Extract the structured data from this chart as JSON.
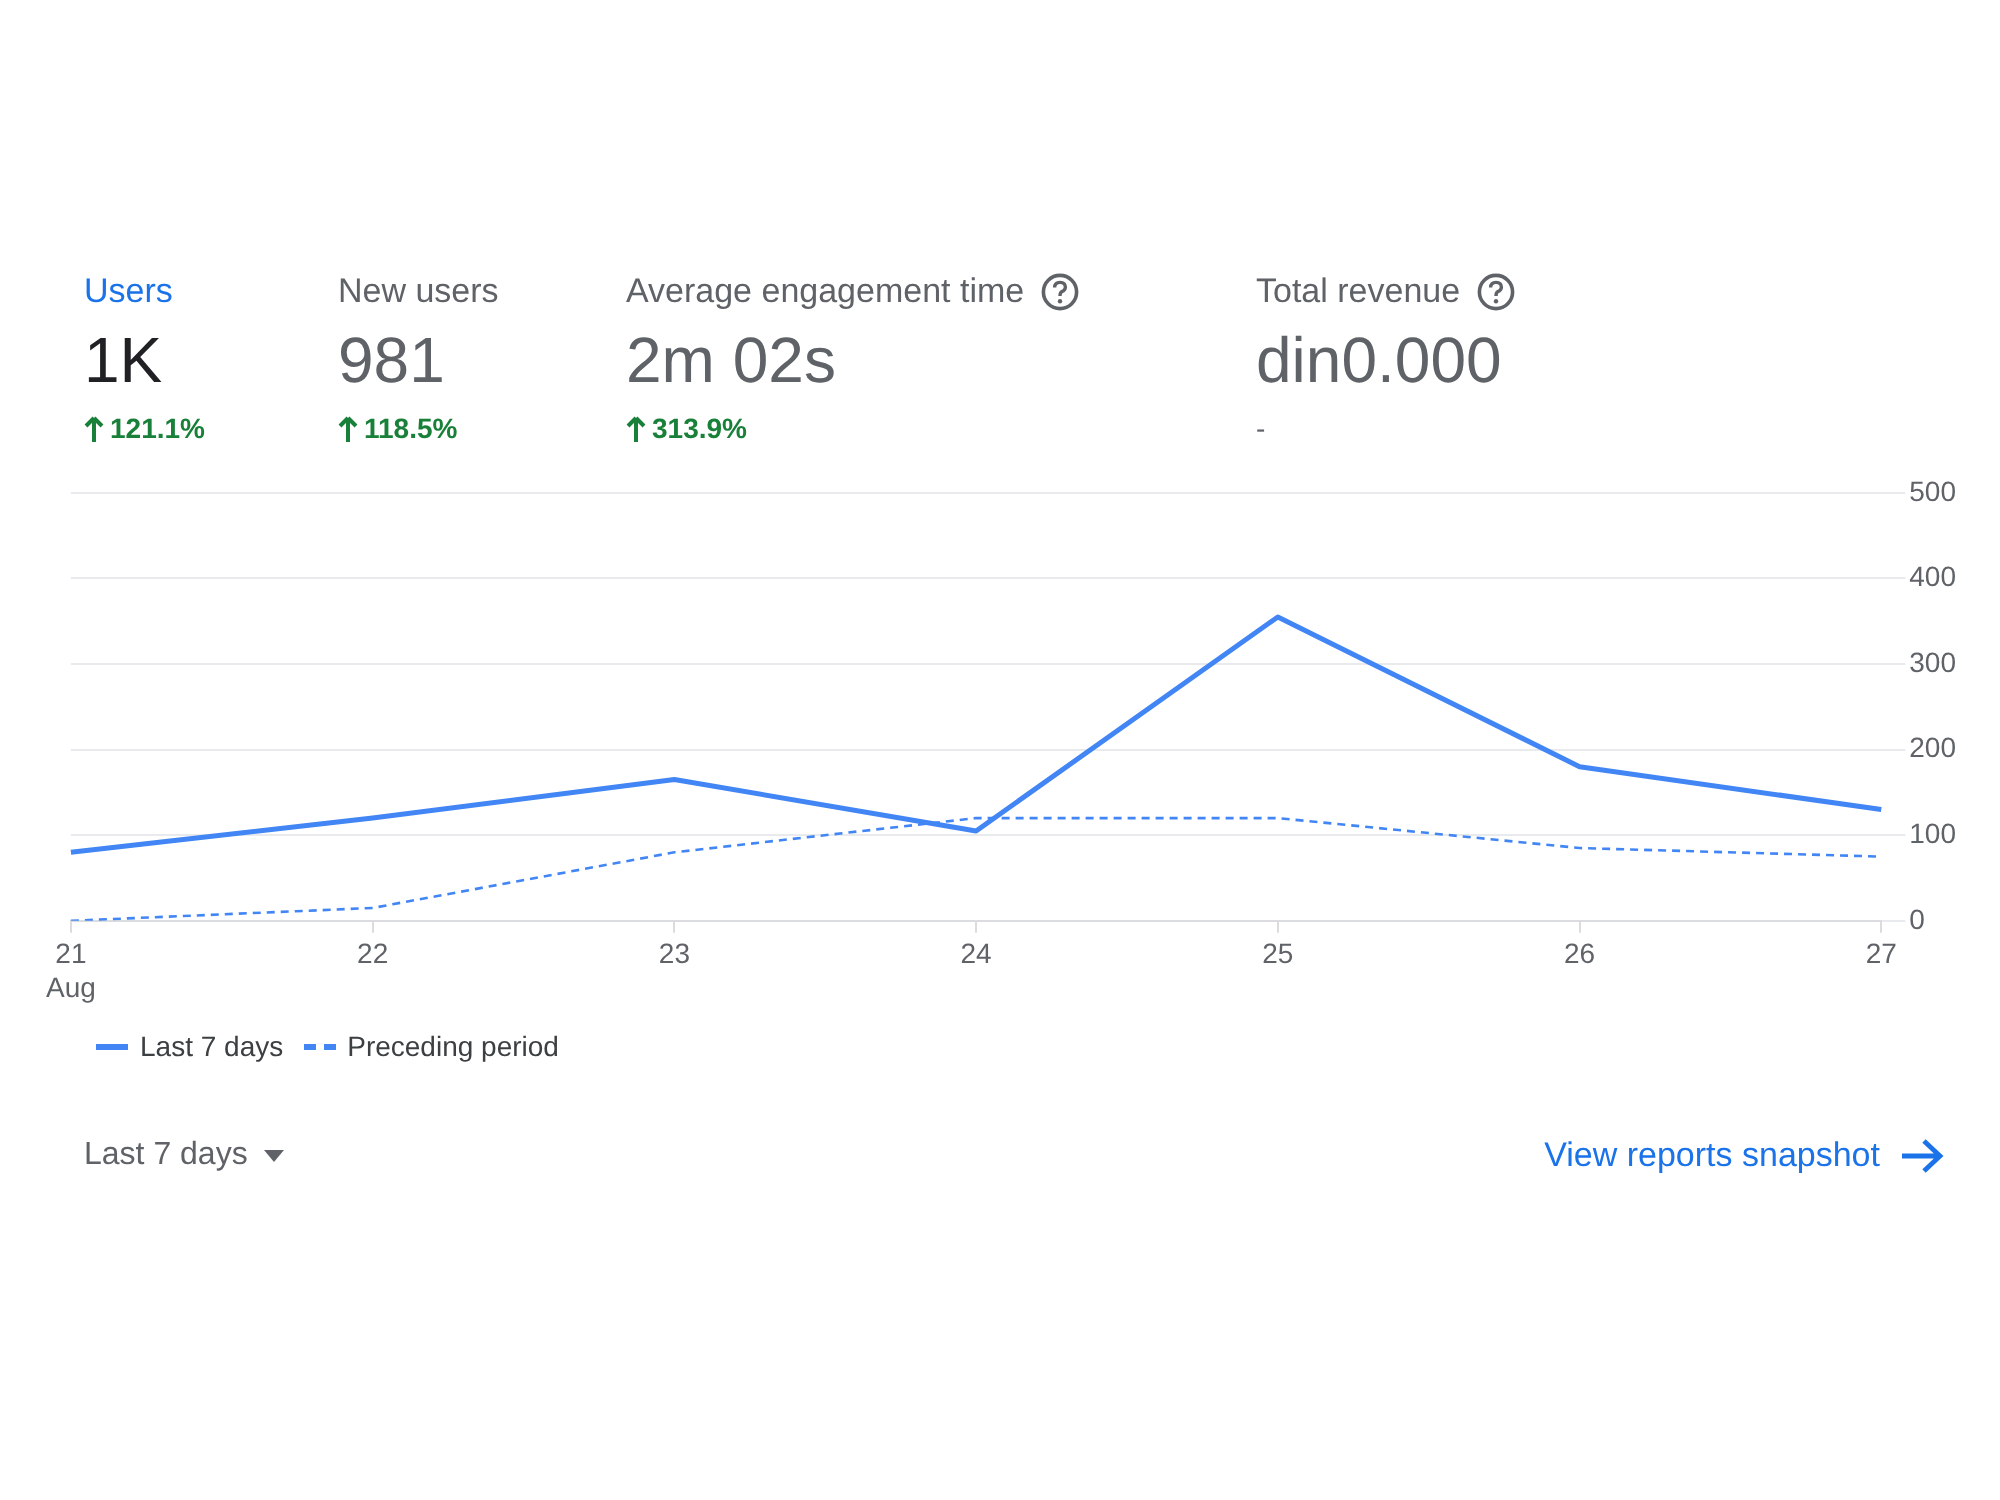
{
  "chart_data": [
    {
      "type": "other",
      "annotations": [
        "Users",
        "1K",
        "121.1%",
        "New users",
        "981",
        "118.5%",
        "Average engagement time",
        "2m 02s",
        "313.9%",
        "Total revenue",
        "din0.000",
        "-"
      ]
    },
    {
      "type": "line",
      "categories": [
        "21\nAug",
        "22",
        "23",
        "24",
        "25",
        "26",
        "27"
      ],
      "series": [
        {
          "name": "Last 7 days",
          "color": "#4285f4",
          "values": [
            80,
            120,
            165,
            105,
            355,
            180,
            130
          ],
          "line_style": "solid"
        },
        {
          "name": "Preceding period",
          "color": "#4285f4",
          "values": [
            0,
            15,
            80,
            120,
            120,
            85,
            75
          ],
          "line_style": "dashed"
        }
      ],
      "ylim": [
        0,
        500
      ],
      "yticks": [
        0,
        100,
        200,
        300,
        400,
        500
      ],
      "grid": "y",
      "legend": "bottom",
      "marker": "none",
      "annotations": [
        "Last 7 days",
        "View reports snapshot"
      ]
    }
  ]
}
